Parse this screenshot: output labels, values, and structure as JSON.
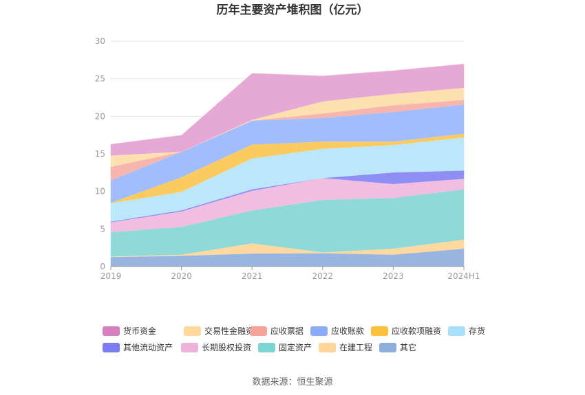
{
  "chart_data": {
    "type": "area",
    "stacked": true,
    "title": "历年主要资产堆积图（亿元）",
    "x": [
      "2019",
      "2020",
      "2021",
      "2022",
      "2023",
      "2024H1"
    ],
    "ylim": [
      0,
      30
    ],
    "yticks": [
      0,
      5,
      10,
      15,
      20,
      25,
      30
    ],
    "grid": true,
    "legend_position": "bottom",
    "series": [
      {
        "name": "其它",
        "color": "#97b5df",
        "values": [
          1.3,
          1.45,
          1.75,
          1.8,
          1.6,
          2.4
        ]
      },
      {
        "name": "在建工程",
        "color": "#ffd9a0",
        "values": [
          0.05,
          0.15,
          1.35,
          0.1,
          0.8,
          1.2
        ]
      },
      {
        "name": "固定资产",
        "color": "#8fdad8",
        "values": [
          3.25,
          3.7,
          4.4,
          7.0,
          6.75,
          6.7
        ]
      },
      {
        "name": "长期股权投资",
        "color": "#f1bde0",
        "values": [
          1.3,
          2.05,
          2.6,
          2.9,
          1.85,
          1.4
        ]
      },
      {
        "name": "其他流动资产",
        "color": "#8e8ef4",
        "values": [
          0.1,
          0.15,
          0.2,
          0.0,
          1.55,
          1.1
        ]
      },
      {
        "name": "存货",
        "color": "#bce7fb",
        "values": [
          2.45,
          2.45,
          4.1,
          3.9,
          3.65,
          4.4
        ]
      },
      {
        "name": "应收款项融资",
        "color": "#fbcb5f",
        "values": [
          0.05,
          1.95,
          1.85,
          0.95,
          0.45,
          0.5
        ]
      },
      {
        "name": "应收账款",
        "color": "#a2bdfb",
        "values": [
          3.0,
          3.4,
          3.2,
          3.15,
          3.95,
          3.9
        ]
      },
      {
        "name": "应收票据",
        "color": "#f8b5ad",
        "values": [
          1.8,
          0.0,
          0.0,
          0.6,
          0.9,
          0.6
        ]
      },
      {
        "name": "交易性金融资产",
        "color": "#fde0b0",
        "values": [
          1.5,
          0.0,
          0.1,
          1.6,
          1.5,
          1.6
        ]
      },
      {
        "name": "货币资金",
        "color": "#e6a8d4",
        "values": [
          1.5,
          2.2,
          6.2,
          3.4,
          3.1,
          3.2
        ]
      }
    ],
    "legend_order": [
      "货币资金",
      "交易性金融资产",
      "应收票据",
      "应收账款",
      "应收款项融资",
      "存货",
      "其他流动资产",
      "长期股权投资",
      "固定资产",
      "在建工程",
      "其它"
    ],
    "legend_colors": {
      "货币资金": "#d87fc0",
      "交易性金融资产": "#ffd999",
      "应收票据": "#f6a399",
      "应收账款": "#8cabf8",
      "应收款项融资": "#fbc13e",
      "存货": "#a9e0fa",
      "其他流动资产": "#7b7bf2",
      "长期股权投资": "#edb3da",
      "固定资产": "#7dd5d3",
      "在建工程": "#ffd699",
      "其它": "#8eaedb"
    }
  },
  "source_text": "数据来源：恒生聚源"
}
